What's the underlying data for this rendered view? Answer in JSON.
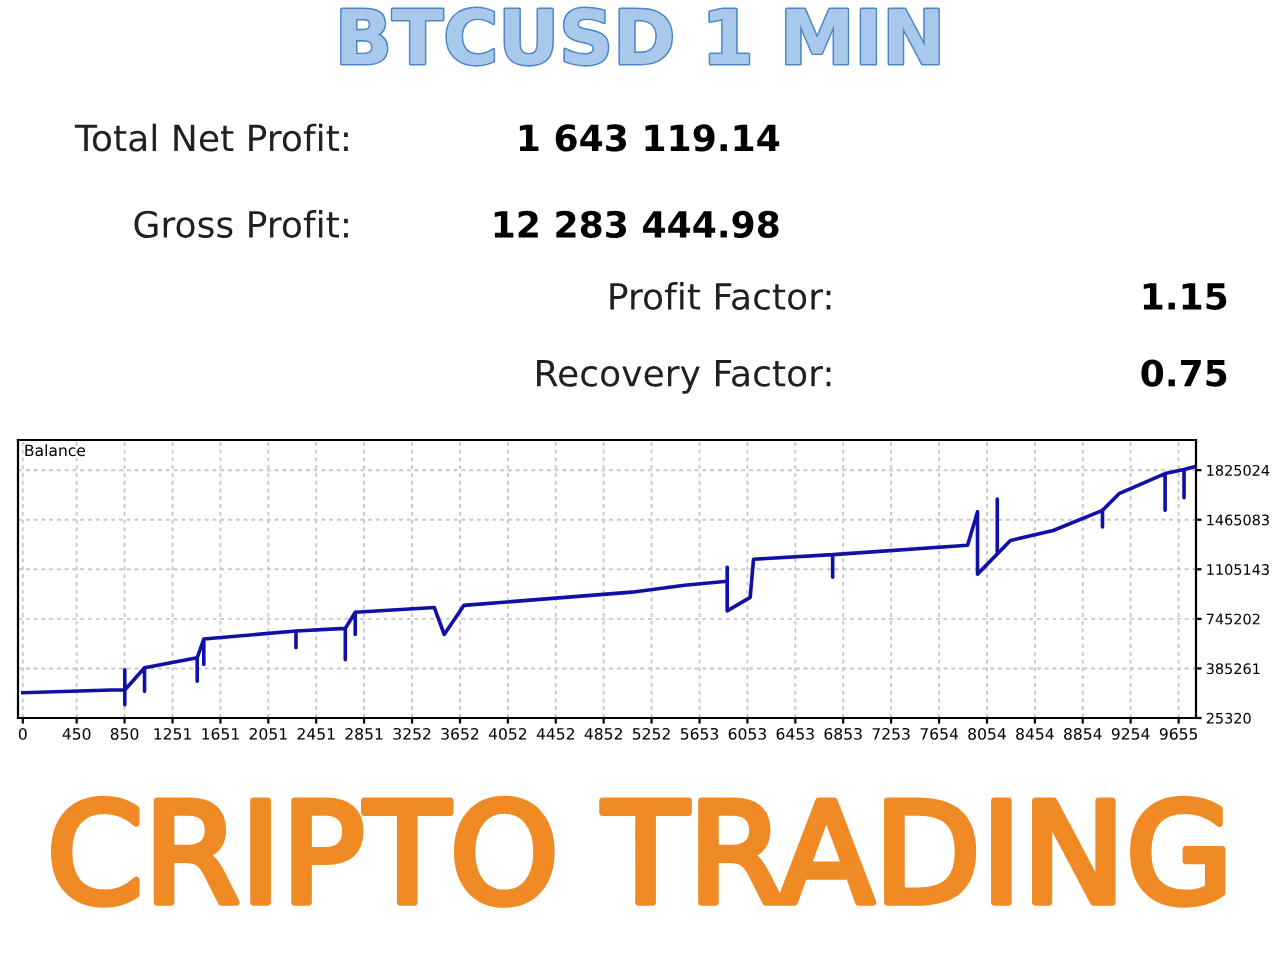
{
  "chart_data": {
    "type": "line",
    "title": "BTCUSD 1 MIN",
    "annotations": [
      "Total Net Profit:",
      "1 643 119.14",
      "Gross Profit:",
      "12 283 444.98",
      "Profit Factor:",
      "1.15",
      "Recovery Factor:",
      "0.75",
      "Balance",
      "CRIPTO TRADING"
    ],
    "series": [
      {
        "color": "#1010a8",
        "x": [
          0,
          741,
          852,
          852,
          852,
          852,
          1017,
          1017,
          1017,
          1457,
          1457,
          1457,
          1512,
          1512,
          1512,
          2282,
          2282,
          2282,
          2694,
          2694,
          2694,
          2777,
          2777,
          2777,
          3437,
          3520,
          3684,
          5087,
          5527,
          5884,
          5884,
          5884,
          6076,
          6104,
          6765,
          6765,
          6765,
          7892,
          7975,
          7975,
          8140,
          8140,
          8140,
          8250,
          8607,
          9019,
          9019,
          9019,
          9157,
          9542,
          9542,
          9542,
          9700,
          9700,
          9700,
          9789
        ],
        "values": [
          209000,
          229000,
          229000,
          122000,
          376000,
          229000,
          390000,
          219000,
          390000,
          463000,
          292000,
          463000,
          599000,
          414000,
          599000,
          657000,
          536000,
          657000,
          676000,
          449000,
          676000,
          793000,
          632000,
          793000,
          828000,
          632000,
          843000,
          939000,
          989000,
          1018000,
          1120000,
          803000,
          901000,
          1178000,
          1212000,
          1047000,
          1212000,
          1280000,
          1523000,
          1070000,
          1216000,
          1616000,
          1216000,
          1314000,
          1387000,
          1533000,
          1412000,
          1533000,
          1654000,
          1800000,
          1533000,
          1800000,
          1830000,
          1625000,
          1830000,
          1850000
        ]
      }
    ],
    "xlim": [
      -40,
      9800
    ],
    "ylim": [
      25320,
      2044000
    ],
    "xticks": [
      0,
      450,
      850,
      1251,
      1651,
      2051,
      2451,
      2851,
      3252,
      3652,
      4052,
      4452,
      4852,
      5252,
      5653,
      6053,
      6453,
      6853,
      7253,
      7654,
      8054,
      8454,
      8854,
      9254,
      9655
    ],
    "yticks": [
      25320,
      385261,
      745202,
      1105143,
      1465083,
      1825024
    ],
    "grid": true
  }
}
